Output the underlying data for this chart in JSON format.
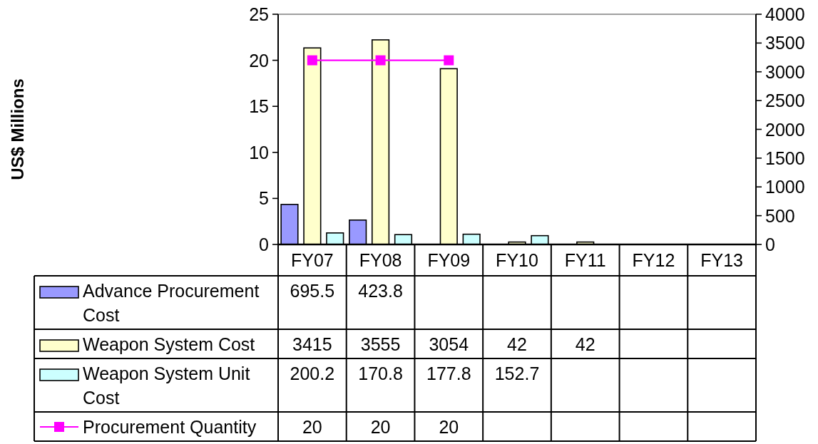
{
  "chart_data": {
    "type": "bar",
    "annotations": [
      "US$ Millions"
    ],
    "categories": [
      "FY07",
      "FY08",
      "FY09",
      "FY10",
      "FY11",
      "FY12",
      "FY13"
    ],
    "series": [
      {
        "name": "Advance Procurement Cost",
        "color": "#9999ff",
        "axis": "y2",
        "values": [
          695.5,
          423.8,
          null,
          null,
          null,
          null,
          null
        ]
      },
      {
        "name": "Weapon System Cost",
        "color": "#ffffcc",
        "axis": "y2",
        "values": [
          3415,
          3555,
          3054,
          42,
          42,
          null,
          null
        ]
      },
      {
        "name": "Weapon System Unit Cost",
        "color": "#ccffff",
        "axis": "y2",
        "values": [
          200.2,
          170.8,
          177.8,
          152.7,
          null,
          null,
          null
        ]
      },
      {
        "name": "Procurement Quantity",
        "type": "line",
        "color": "#ff00ff",
        "values": [
          20,
          20,
          20,
          null,
          null,
          null,
          null
        ]
      }
    ],
    "ylim": [
      0,
      25
    ],
    "yticks": [
      0,
      5,
      10,
      15,
      20,
      25
    ],
    "y2lim": [
      0,
      4000
    ],
    "y2ticks": [
      0,
      500,
      1000,
      1500,
      2000,
      2500,
      3000,
      3500,
      4000
    ],
    "marker": "square",
    "data_labels": true,
    "legend": "bottom left"
  }
}
